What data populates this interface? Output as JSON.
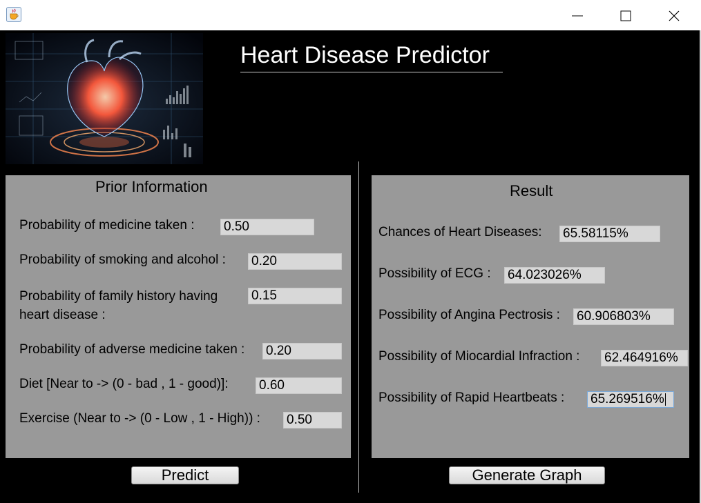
{
  "window": {
    "icon": "java-cup-icon"
  },
  "app_title": "Heart Disease Predictor",
  "prior": {
    "title": "Prior Information",
    "fields": [
      {
        "label": "Probability of medicine taken :",
        "value": "0.50"
      },
      {
        "label": "Probability of smoking and alcohol :",
        "value": "0.20"
      },
      {
        "label": "Probability of family history having",
        "label2": "heart disease :",
        "value": "0.15"
      },
      {
        "label": "Probability of adverse medicine taken :",
        "value": "0.20"
      },
      {
        "label": "Diet [Near to -> (0 - bad , 1 - good)]:",
        "value": "0.60"
      },
      {
        "label": "Exercise (Near to -> (0 - Low , 1 - High)) :",
        "value": "0.50"
      }
    ]
  },
  "result": {
    "title": "Result",
    "fields": [
      {
        "label": "Chances of Heart Diseases:",
        "value": "65.58115%"
      },
      {
        "label": "Possibility of ECG :",
        "value": "64.023026%"
      },
      {
        "label": "Possibility of Angina Pectrosis :",
        "value": "60.906803%"
      },
      {
        "label": "Possibility of Miocardial Infraction :",
        "value": "62.464916%"
      },
      {
        "label": "Possibility of Rapid Heartbeats :",
        "value": "65.269516%"
      }
    ]
  },
  "buttons": {
    "predict": "Predict",
    "generate_graph": "Generate Graph"
  },
  "colors": {
    "panel": "#999999",
    "background": "#000000",
    "field": "#d8d8d8"
  }
}
